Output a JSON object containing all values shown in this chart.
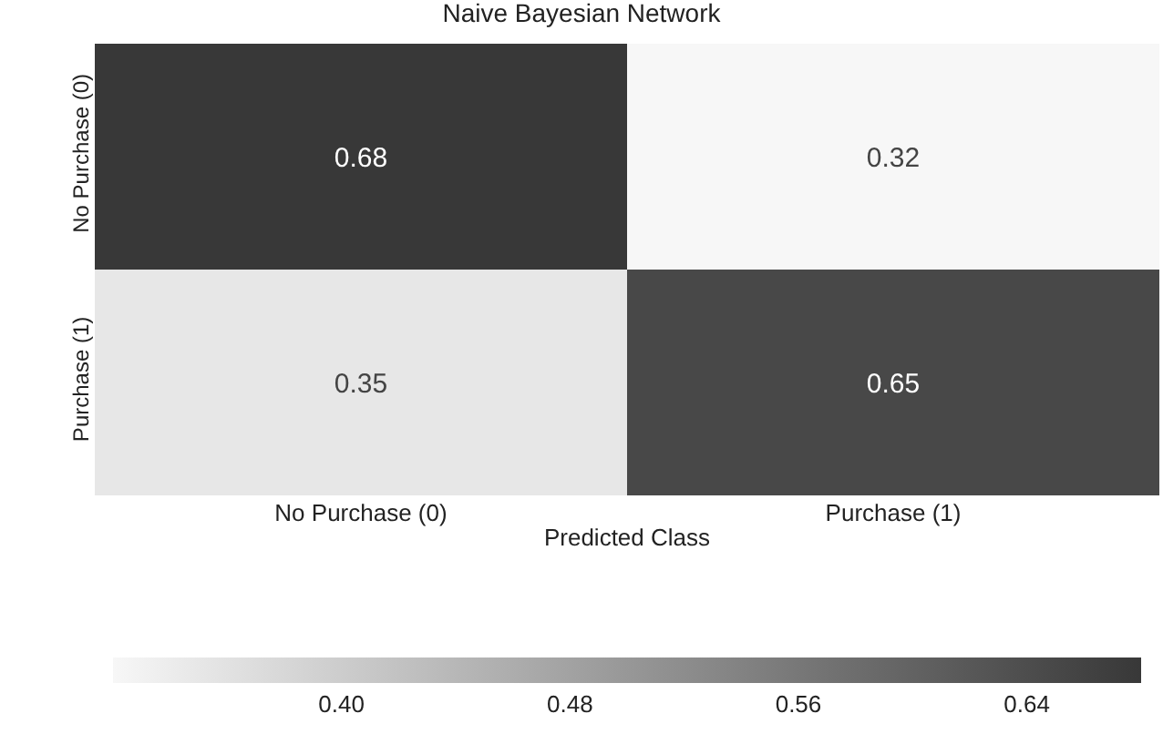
{
  "chart_data": {
    "type": "heatmap",
    "title": "Naive Bayesian Network",
    "xlabel": "Predicted Class",
    "categories": [
      "No Purchase (0)",
      "Purchase (1)"
    ],
    "y_categories": [
      "No Purchase (0)",
      "Purchase (1)"
    ],
    "cells": [
      [
        0.68,
        0.32
      ],
      [
        0.35,
        0.65
      ]
    ],
    "data_labels": true,
    "clim": [
      0.32,
      0.68
    ],
    "cticks": [
      {
        "value": 0.4,
        "label": "0.40"
      },
      {
        "value": 0.48,
        "label": "0.48"
      },
      {
        "value": 0.56,
        "label": "0.56"
      },
      {
        "value": 0.64,
        "label": "0.64"
      }
    ]
  }
}
